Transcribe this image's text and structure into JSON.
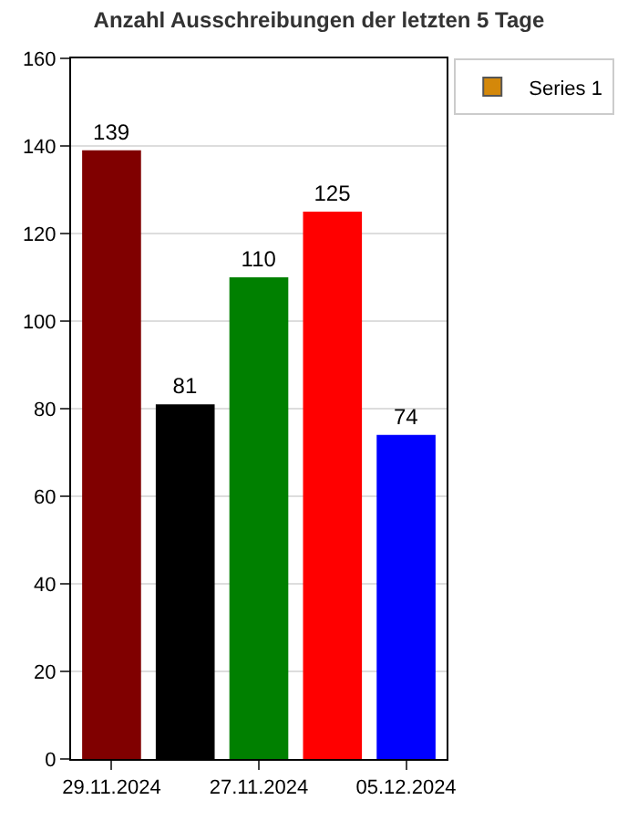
{
  "chart_data": {
    "type": "bar",
    "title": "Anzahl Ausschreibungen der letzten 5 Tage",
    "categories": [
      "29.11.2024",
      null,
      "27.11.2024",
      null,
      "05.12.2024"
    ],
    "series": [
      {
        "name": "Series 1",
        "color": "#d4880a",
        "colors": [
          "#800000",
          "#000000",
          "#008000",
          "#ff0000",
          "#0000ff"
        ],
        "values": [
          139,
          81,
          110,
          125,
          74
        ]
      }
    ],
    "ylim": [
      0,
      160
    ],
    "yticks": [
      0,
      20,
      40,
      60,
      80,
      100,
      120,
      140,
      160
    ],
    "grid": "y",
    "legend": "top right",
    "data_labels": true
  }
}
